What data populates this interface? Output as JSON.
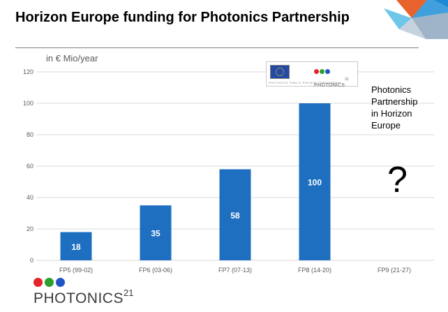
{
  "title": "Horizon Europe funding for Photonics Partnership",
  "unit_label": "in € Mio/year",
  "colors": {
    "bar": "#1f6fc1",
    "grid": "#d9d9d9",
    "axis_text": "#595959",
    "bar_label": "#ffffff"
  },
  "chart_data": {
    "type": "bar",
    "categories": [
      "FP5 (99-02)",
      "FP6 (03-06)",
      "FP7 (07-13)",
      "FP8 (14-20)",
      "FP9 (21-27)"
    ],
    "values": [
      18,
      35,
      58,
      100,
      null
    ],
    "data_labels": [
      "18",
      "35",
      "58",
      "100",
      ""
    ],
    "ylabel": "in € Mio/year",
    "ylim": [
      0,
      120
    ],
    "yticks": [
      0,
      20,
      40,
      60,
      80,
      100,
      120
    ],
    "grid": true,
    "legend": "none"
  },
  "annotation": {
    "lines": [
      "Photonics",
      "Partnership",
      "in Horizon",
      "Europe"
    ],
    "question_mark": "?"
  },
  "badge": {
    "icon": "eu-flag-icon",
    "logo_text": "PHOTONICS",
    "logo_number": "21",
    "subtext": "PHOTONICS PUBLIC PRIVATE PARTNERSHIP"
  },
  "footer_logo": {
    "text": "PHOTONICS",
    "number": "21",
    "dot_colors": [
      "#e3242b",
      "#2ca02c",
      "#2255c4"
    ]
  }
}
